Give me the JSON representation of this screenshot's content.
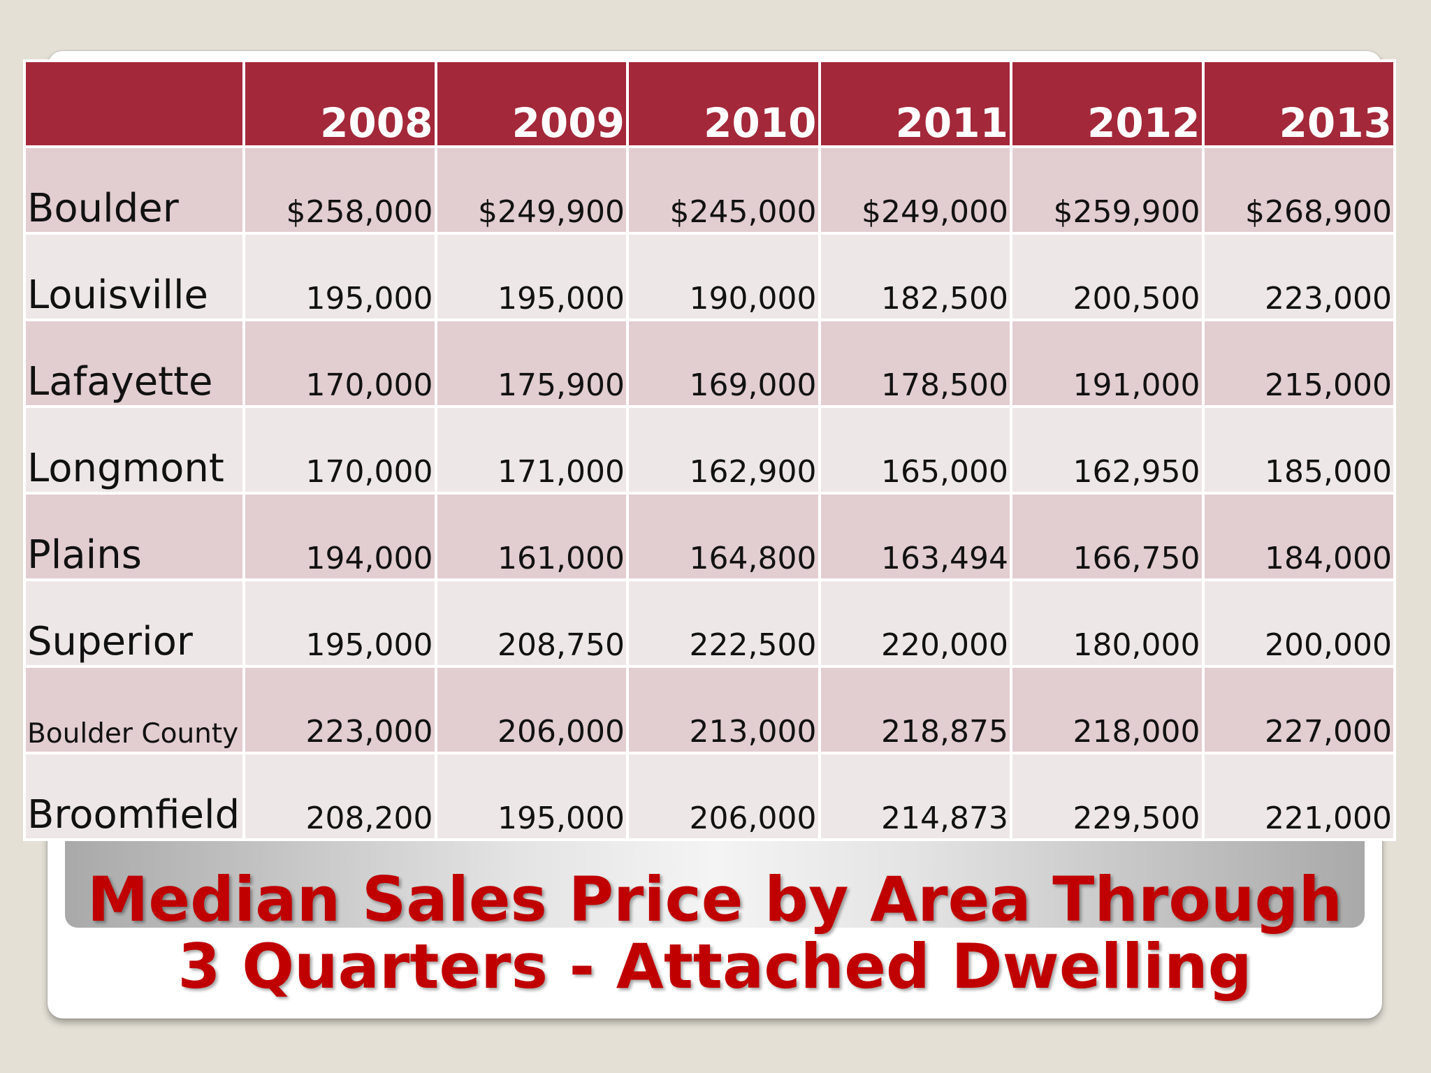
{
  "slide": {
    "title_line1": "Median Sales Price by Area Through",
    "title_line2": "3 Quarters - Attached Dwelling"
  },
  "colors": {
    "header": "#a3283a",
    "row_odd": "#e2cdd1",
    "row_even": "#eee7e8",
    "title_text": "#c00000"
  },
  "chart_data": {
    "type": "table",
    "title": "Median Sales Price by Area Through 3 Quarters - Attached Dwelling",
    "columns": [
      "2008",
      "2009",
      "2010",
      "2011",
      "2012",
      "2013"
    ],
    "rows": [
      {
        "area": "Boulder",
        "values": [
          "$258,000",
          "$249,900",
          "$245,000",
          "$249,000",
          "$259,900",
          "$268,900"
        ]
      },
      {
        "area": "Louisville",
        "values": [
          "195,000",
          "195,000",
          "190,000",
          "182,500",
          "200,500",
          "223,000"
        ]
      },
      {
        "area": "Lafayette",
        "values": [
          "170,000",
          "175,900",
          "169,000",
          "178,500",
          "191,000",
          "215,000"
        ]
      },
      {
        "area": "Longmont",
        "values": [
          "170,000",
          "171,000",
          "162,900",
          "165,000",
          "162,950",
          "185,000"
        ]
      },
      {
        "area": "Plains",
        "values": [
          "194,000",
          "161,000",
          "164,800",
          "163,494",
          "166,750",
          "184,000"
        ]
      },
      {
        "area": "Superior",
        "values": [
          "195,000",
          "208,750",
          "222,500",
          "220,000",
          "180,000",
          "200,000"
        ]
      },
      {
        "area": "Boulder County",
        "values": [
          "223,000",
          "206,000",
          "213,000",
          "218,875",
          "218,000",
          "227,000"
        ]
      },
      {
        "area": "Broomfield",
        "values": [
          "208,200",
          "195,000",
          "206,000",
          "214,873",
          "229,500",
          "221,000"
        ]
      }
    ]
  }
}
